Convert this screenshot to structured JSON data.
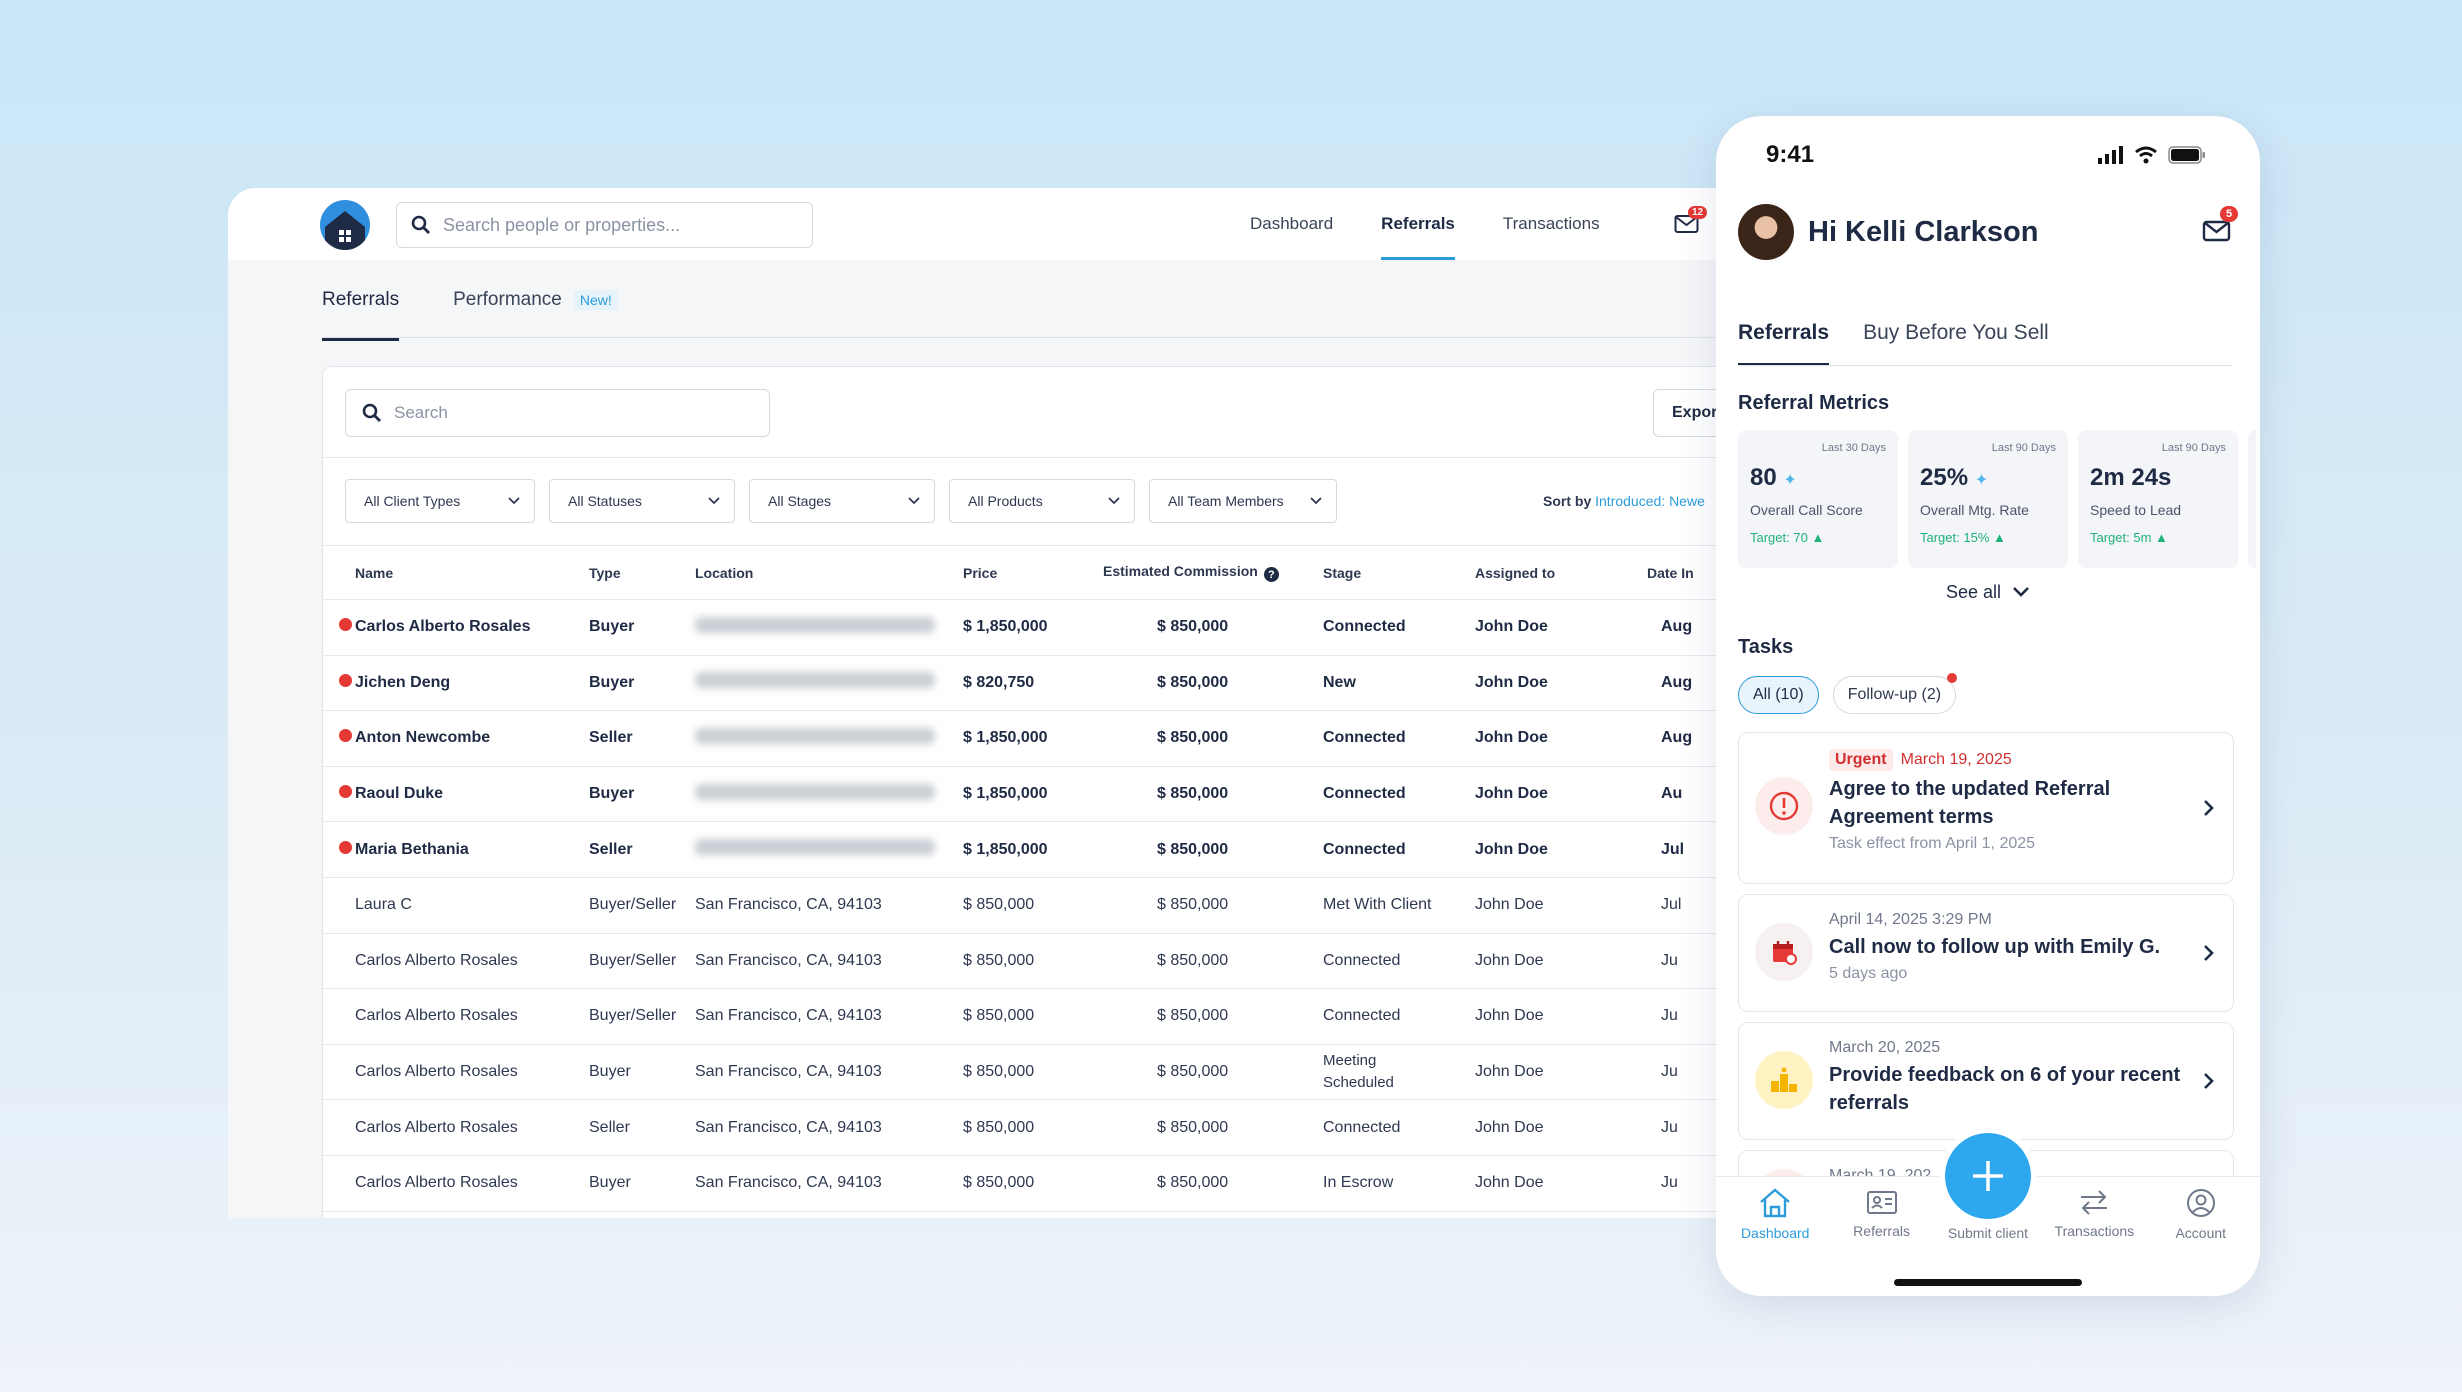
{
  "desktop": {
    "search_placeholder": "Search people or properties...",
    "nav": [
      "Dashboard",
      "Referrals",
      "Transactions"
    ],
    "mail_badge": "12",
    "subtabs": {
      "referrals": "Referrals",
      "performance": "Performance",
      "new_label": "New!"
    },
    "table_search_placeholder": "Search",
    "export_label": "Expor",
    "filters": [
      "All Client Types",
      "All Statuses",
      "All Stages",
      "All Products",
      "All Team Members"
    ],
    "sort": {
      "label": "Sort by",
      "value": "Introduced: Newe"
    },
    "columns": [
      "Name",
      "Type",
      "Location",
      "Price",
      "Estimated Commission",
      "Stage",
      "Assigned to",
      "Date In"
    ],
    "rows": [
      {
        "hot": true,
        "name": "Carlos Alberto Rosales",
        "type": "Buyer",
        "location": "",
        "price": "$ 1,850,000",
        "commission": "$ 850,000",
        "stage": "Connected",
        "assigned": "John Doe",
        "date": "Aug"
      },
      {
        "hot": true,
        "name": "Jichen Deng",
        "type": "Buyer",
        "location": "",
        "price": "$ 820,750",
        "commission": "$ 850,000",
        "stage": "New",
        "assigned": "John Doe",
        "date": "Aug"
      },
      {
        "hot": true,
        "name": "Anton Newcombe",
        "type": "Seller",
        "location": "",
        "price": "$ 1,850,000",
        "commission": "$ 850,000",
        "stage": "Connected",
        "assigned": "John Doe",
        "date": "Aug"
      },
      {
        "hot": true,
        "name": "Raoul Duke",
        "type": "Buyer",
        "location": "",
        "price": "$ 1,850,000",
        "commission": "$ 850,000",
        "stage": "Connected",
        "assigned": "John Doe",
        "date": "Au"
      },
      {
        "hot": true,
        "name": "Maria Bethania",
        "type": "Seller",
        "location": "",
        "price": "$ 1,850,000",
        "commission": "$ 850,000",
        "stage": "Connected",
        "assigned": "John Doe",
        "date": "Jul"
      },
      {
        "hot": false,
        "name": "Laura C",
        "type": "Buyer/Seller",
        "location": "San Francisco, CA, 94103",
        "price": "$ 850,000",
        "commission": "$ 850,000",
        "stage": "Met With Client",
        "assigned": "John Doe",
        "date": "Jul"
      },
      {
        "hot": false,
        "name": "Carlos Alberto Rosales",
        "type": "Buyer/Seller",
        "location": "San Francisco, CA, 94103",
        "price": "$ 850,000",
        "commission": "$ 850,000",
        "stage": "Connected",
        "assigned": "John Doe",
        "date": "Ju"
      },
      {
        "hot": false,
        "name": "Carlos Alberto Rosales",
        "type": "Buyer/Seller",
        "location": "San Francisco, CA, 94103",
        "price": "$ 850,000",
        "commission": "$ 850,000",
        "stage": "Connected",
        "assigned": "John Doe",
        "date": "Ju"
      },
      {
        "hot": false,
        "name": "Carlos Alberto Rosales",
        "type": "Buyer",
        "location": "San Francisco, CA, 94103",
        "price": "$ 850,000",
        "commission": "$ 850,000",
        "stage": "Meeting Scheduled",
        "assigned": "John Doe",
        "date": "Ju"
      },
      {
        "hot": false,
        "name": "Carlos Alberto Rosales",
        "type": "Seller",
        "location": "San Francisco, CA, 94103",
        "price": "$ 850,000",
        "commission": "$ 850,000",
        "stage": "Connected",
        "assigned": "John Doe",
        "date": "Ju"
      },
      {
        "hot": false,
        "name": "Carlos Alberto Rosales",
        "type": "Buyer",
        "location": "San Francisco, CA, 94103",
        "price": "$ 850,000",
        "commission": "$ 850,000",
        "stage": "In Escrow",
        "assigned": "John Doe",
        "date": "Ju"
      }
    ]
  },
  "phone": {
    "time": "9:41",
    "greeting": "Hi Kelli Clarkson",
    "mail_badge": "5",
    "tabs": [
      "Referrals",
      "Buy Before You Sell"
    ],
    "metrics_title": "Referral Metrics",
    "metrics": [
      {
        "period": "Last 30 Days",
        "value": "80",
        "label": "Overall Call Score",
        "target": "Target: 70"
      },
      {
        "period": "Last 90 Days",
        "value": "25%",
        "label": "Overall Mtg. Rate",
        "target": "Target: 15%"
      },
      {
        "period": "Last 90 Days",
        "value": "2m 24s",
        "label": "Speed to Lead",
        "target": "Target: 5m"
      }
    ],
    "see_all": "See all",
    "tasks_title": "Tasks",
    "chips": [
      "All (10)",
      "Follow-up (2)"
    ],
    "tasks": [
      {
        "tag": "Urgent",
        "date": "March 19, 2025",
        "title": "Agree to the updated Referral Agreement terms",
        "sub": "Task effect from April 1, 2025",
        "icon": "alert-icon"
      },
      {
        "date": "April 14, 2025 3:29 PM",
        "title": "Call now to follow up with Emily G.",
        "sub": "5 days ago",
        "icon": "calendar-icon"
      },
      {
        "date": "March 20, 2025",
        "title": "Provide feedback on 6 of your recent referrals",
        "icon": "podium-icon"
      },
      {
        "date": "March 19, 202"
      }
    ],
    "bottom_nav": [
      "Dashboard",
      "Referrals",
      "Submit client",
      "Transactions",
      "Account"
    ],
    "colors": {
      "accent": "#2d9cdb",
      "urgent": "#d32f2f",
      "target": "#1fb27a"
    }
  }
}
